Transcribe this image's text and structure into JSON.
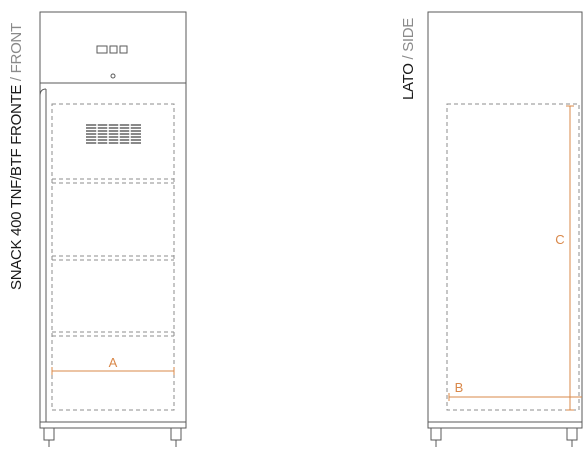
{
  "front_view": {
    "title_bold": "SNACK 400 TNF/BTF FRONTE",
    "title_separator": " / ",
    "title_light": "FRONT",
    "dimension_label": "A"
  },
  "side_view": {
    "title_bold": "LATO",
    "title_separator": " / ",
    "title_light": "SIDE",
    "dimension_label_width": "B",
    "dimension_label_height": "C"
  },
  "colors": {
    "outline": "#5a5a5a",
    "dashed": "#8c8c8c",
    "dimension": "#d9884a",
    "text_dark": "#1a1a1a",
    "text_light": "#8a8a8a"
  }
}
